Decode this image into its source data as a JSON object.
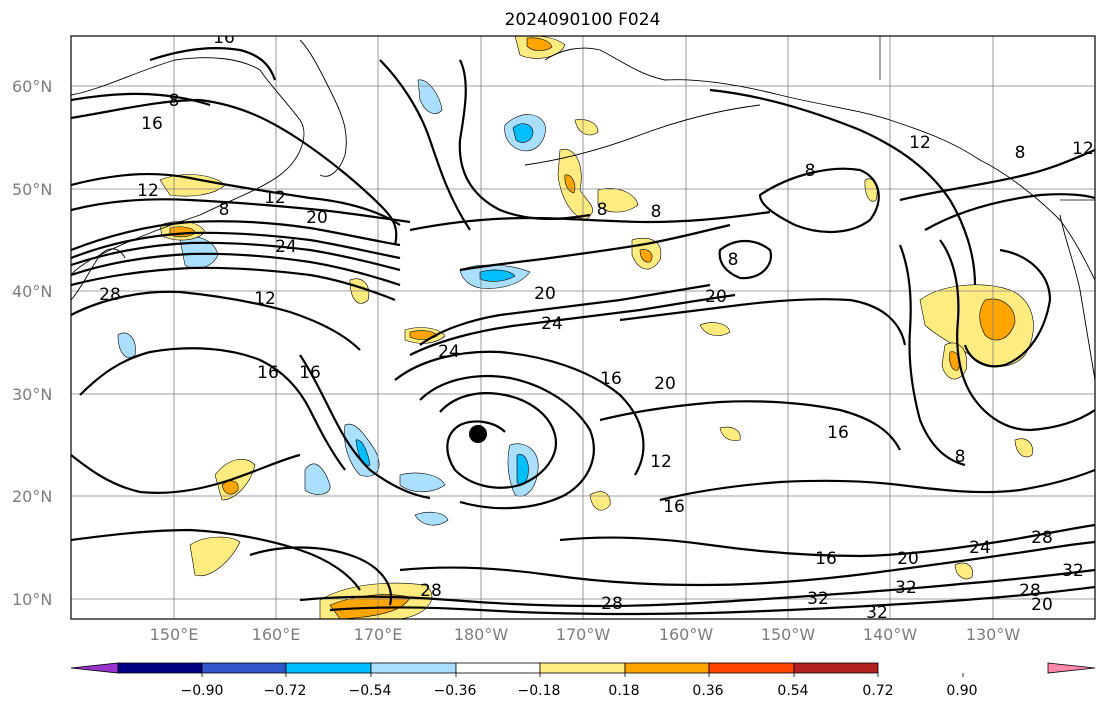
{
  "title": "2024090100 F024",
  "lat_labels": [
    "60°N",
    "50°N",
    "40°N",
    "30°N",
    "20°N",
    "10°N"
  ],
  "lon_labels": [
    "150°E",
    "160°E",
    "170°E",
    "180°W",
    "170°W",
    "160°W",
    "150°W",
    "140°W",
    "130°W"
  ],
  "contour_labels": [
    "16",
    "8",
    "16",
    "12",
    "12",
    "20",
    "24",
    "8",
    "28",
    "12",
    "16",
    "16",
    "24",
    "20",
    "24",
    "16",
    "20",
    "20",
    "16",
    "12",
    "16",
    "16",
    "20",
    "24",
    "28",
    "28",
    "28",
    "32",
    "32",
    "32",
    "28",
    "20",
    "32",
    "8",
    "8",
    "8",
    "12",
    "12",
    "8",
    "8",
    "8"
  ],
  "colorbar": {
    "labels": [
      "−0.90",
      "−0.72",
      "−0.54",
      "−0.36",
      "−0.18",
      "0.18",
      "0.36",
      "0.54",
      "0.72",
      "0.90"
    ],
    "colors": [
      "#9933cc",
      "#000080",
      "#3355cc",
      "#00bfff",
      "#aadfff",
      "#ffffff",
      "#ffec80",
      "#ffa500",
      "#ff4500",
      "#b22222",
      "#ff88aa"
    ]
  },
  "colors": {
    "contour": "#000000",
    "grid": "#808080",
    "frame": "#000000",
    "marker": "#000000"
  }
}
